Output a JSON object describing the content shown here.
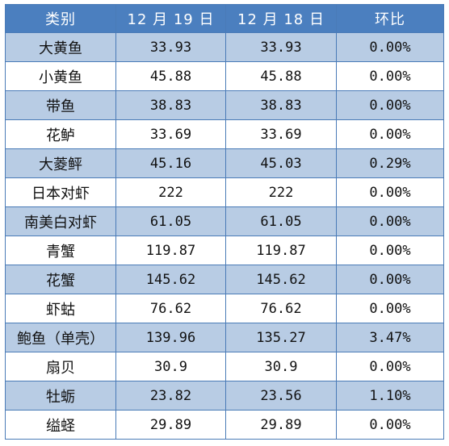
{
  "table": {
    "headers": [
      "类别",
      "12 月 19 日",
      "12 月 18 日",
      "环比"
    ],
    "rows": [
      {
        "category": "大黄鱼",
        "dec19": "33.93",
        "dec18": "33.93",
        "change": "0.00%"
      },
      {
        "category": "小黄鱼",
        "dec19": "45.88",
        "dec18": "45.88",
        "change": "0.00%"
      },
      {
        "category": "带鱼",
        "dec19": "38.83",
        "dec18": "38.83",
        "change": "0.00%"
      },
      {
        "category": "花鲈",
        "dec19": "33.69",
        "dec18": "33.69",
        "change": "0.00%"
      },
      {
        "category": "大菱鲆",
        "dec19": "45.16",
        "dec18": "45.03",
        "change": "0.29%"
      },
      {
        "category": "日本对虾",
        "dec19": "222",
        "dec18": "222",
        "change": "0.00%"
      },
      {
        "category": "南美白对虾",
        "dec19": "61.05",
        "dec18": "61.05",
        "change": "0.00%"
      },
      {
        "category": "青蟹",
        "dec19": "119.87",
        "dec18": "119.87",
        "change": "0.00%"
      },
      {
        "category": "花蟹",
        "dec19": "145.62",
        "dec18": "145.62",
        "change": "0.00%"
      },
      {
        "category": "虾蛄",
        "dec19": "76.62",
        "dec18": "76.62",
        "change": "0.00%"
      },
      {
        "category": "鲍鱼（单壳）",
        "dec19": "139.96",
        "dec18": "135.27",
        "change": "3.47%"
      },
      {
        "category": "扇贝",
        "dec19": "30.9",
        "dec18": "30.9",
        "change": "0.00%"
      },
      {
        "category": "牡蛎",
        "dec19": "23.82",
        "dec18": "23.56",
        "change": "1.10%"
      },
      {
        "category": "缢蛏",
        "dec19": "29.89",
        "dec18": "29.89",
        "change": "0.00%"
      }
    ]
  },
  "colors": {
    "header_bg": "#4b7fbf",
    "header_text": "#ffffff",
    "shaded_row": "#b8cce4",
    "plain_row": "#ffffff",
    "border": "#4a7bb7"
  }
}
